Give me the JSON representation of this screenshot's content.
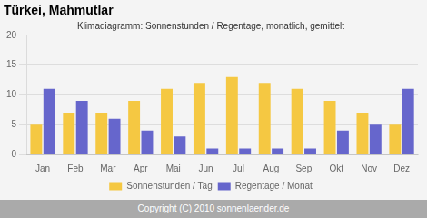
{
  "chart_data": {
    "type": "bar",
    "title": "Türkei, Mahmutlar",
    "subtitle": "Klimadiagramm: Sonnenstunden / Regentage, monatlich, gemittelt",
    "annotations": [
      "Copyright (C) 2010 sonnenlaender.de"
    ],
    "categories": [
      "Jan",
      "Feb",
      "Mar",
      "Apr",
      "Mai",
      "Jun",
      "Jul",
      "Aug",
      "Sep",
      "Okt",
      "Nov",
      "Dez"
    ],
    "series": [
      {
        "name": "Sonnenstunden / Tag",
        "color": "#F5C842",
        "values": [
          5,
          7,
          7,
          9,
          11,
          12,
          13,
          12,
          11,
          9,
          7,
          5
        ]
      },
      {
        "name": "Regentage / Monat",
        "color": "#6666CC",
        "values": [
          11,
          9,
          6,
          4,
          3,
          1,
          1,
          1,
          1,
          4,
          5,
          11
        ]
      }
    ],
    "ylim": [
      0,
      20
    ],
    "yticks": [
      0,
      5,
      10,
      15,
      20
    ],
    "grid": true,
    "legend": "bottom"
  }
}
